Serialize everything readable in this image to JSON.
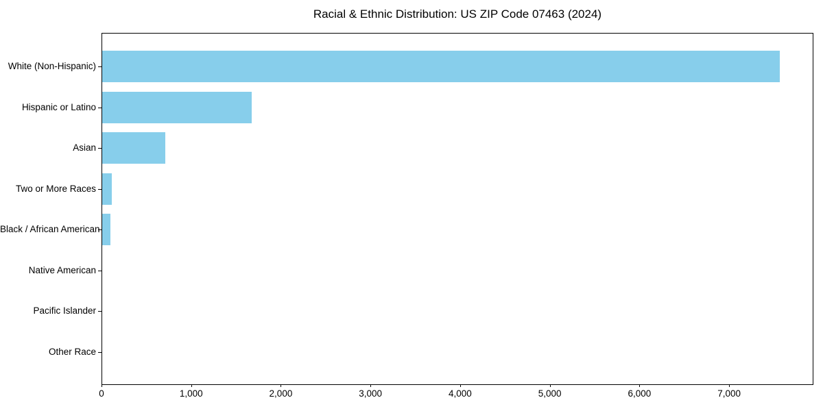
{
  "figure": {
    "title": "Racial & Ethnic Distribution: US ZIP Code 07463 (2024)"
  },
  "chart_data": {
    "type": "bar",
    "orientation": "horizontal",
    "title": "Racial & Ethnic Distribution: US ZIP Code 07463 (2024)",
    "categories": [
      "White (Non-Hispanic)",
      "Hispanic or Latino",
      "Asian",
      "Two or More Races",
      "Black / African American",
      "Native American",
      "Pacific Islander",
      "Other Race"
    ],
    "values": [
      7560,
      1670,
      700,
      105,
      95,
      0,
      0,
      0
    ],
    "xlabel": "",
    "ylabel": "",
    "xlim": [
      0,
      7940
    ],
    "xticks": {
      "values": [
        0,
        1000,
        2000,
        3000,
        4000,
        5000,
        6000,
        7000
      ],
      "labels": [
        "0",
        "1,000",
        "2,000",
        "3,000",
        "4,000",
        "5,000",
        "6,000",
        "7,000"
      ]
    },
    "grid": false,
    "legend": false,
    "bar_color": "#87CEEB",
    "spine_color": "#000000",
    "text_color": "#000000",
    "background": "#ffffff"
  }
}
